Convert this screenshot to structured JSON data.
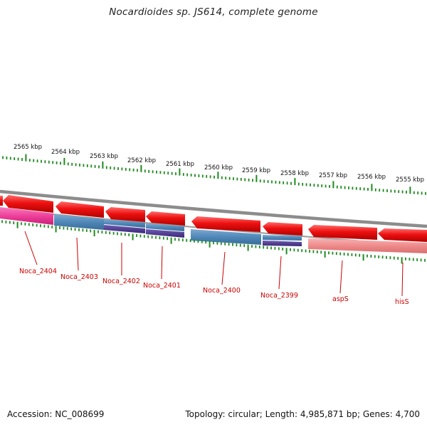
{
  "title": "Nocardioides sp. JS614, complete genome",
  "footer": {
    "accession": "Accession: NC_008699",
    "topology": "Topology: circular; Length: 4,985,871 bp; Genes: 4,700"
  },
  "colors": {
    "outer_tick": "#1f8a1f",
    "inner_tick": "#1f8a1f",
    "backbone": "#8c8c8c",
    "red_gene": "#ee1111",
    "pink_gene": "#ee3f9a",
    "blue_gene": "#4f87b8",
    "purple_gene": "#4a3590",
    "rrna_gene": "#ef8a8a",
    "label": "#cc0000"
  },
  "scale_labels": [
    "2565 kbp",
    "2564 kbp",
    "2563 kbp",
    "2562 kbp",
    "2561 kbp",
    "2560 kbp",
    "2559 kbp",
    "2558 kbp",
    "2557 kbp",
    "2556 kbp",
    "2555 kbp"
  ],
  "genes": [
    {
      "label": "Noca_2404",
      "kind": "pink"
    },
    {
      "label": "Noca_2403",
      "kind": "blue"
    },
    {
      "label": "Noca_2402",
      "kind": "purple"
    },
    {
      "label": "Noca_2401",
      "kind": "purple"
    },
    {
      "label": "Noca_2400",
      "kind": "blue"
    },
    {
      "label": "Noca_2399",
      "kind": "purple"
    },
    {
      "label": "aspS",
      "kind": "rrna"
    },
    {
      "label": "hisS",
      "kind": "rrna"
    }
  ]
}
